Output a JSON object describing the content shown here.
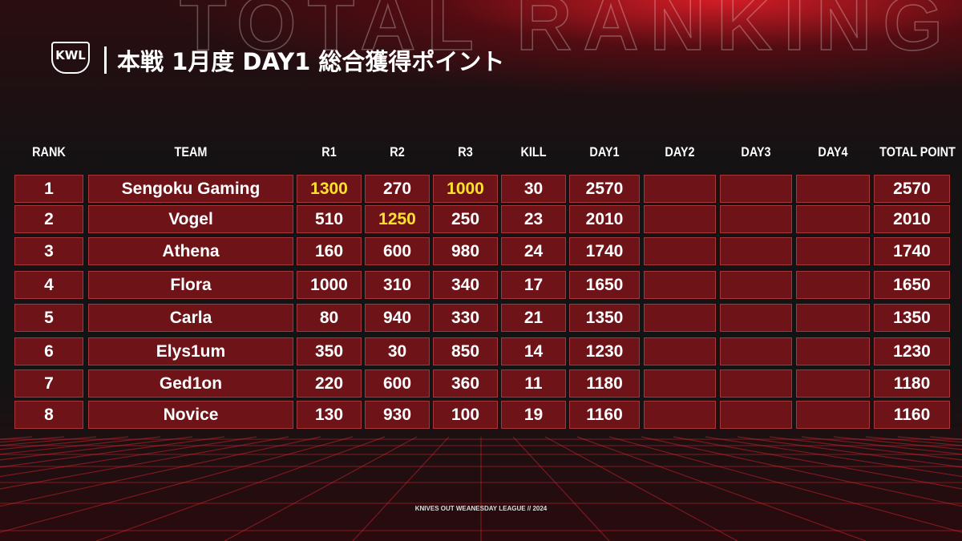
{
  "header": {
    "logo": "KWL",
    "title": "本戦 1月度 DAY1 総合獲得ポイント",
    "background_text": "TOTAL RANKING"
  },
  "table": {
    "columns": [
      "RANK",
      "TEAM",
      "R1",
      "R2",
      "R3",
      "KILL",
      "DAY1",
      "DAY2",
      "DAY3",
      "DAY4",
      "TOTAL POINT"
    ],
    "rows": [
      [
        1,
        "Sengoku Gaming",
        1300,
        270,
        1000,
        30,
        2570,
        null,
        null,
        null,
        2570
      ],
      [
        2,
        "Vogel",
        510,
        1250,
        250,
        23,
        2010,
        null,
        null,
        null,
        2010
      ],
      [
        3,
        "Athena",
        160,
        600,
        980,
        24,
        1740,
        null,
        null,
        null,
        1740
      ],
      [
        4,
        "Flora",
        1000,
        310,
        340,
        17,
        1650,
        null,
        null,
        null,
        1650
      ],
      [
        5,
        "Carla",
        80,
        940,
        330,
        21,
        1350,
        null,
        null,
        null,
        1350
      ],
      [
        6,
        "Elys1um",
        350,
        30,
        850,
        14,
        1230,
        null,
        null,
        null,
        1230
      ],
      [
        7,
        "Ged1on",
        220,
        600,
        360,
        11,
        1180,
        null,
        null,
        null,
        1180
      ],
      [
        8,
        "Novice",
        130,
        930,
        100,
        19,
        1160,
        null,
        null,
        null,
        1160
      ]
    ]
  },
  "footer": "KNIVES OUT WEANESDAY LEAGUE // 2024"
}
